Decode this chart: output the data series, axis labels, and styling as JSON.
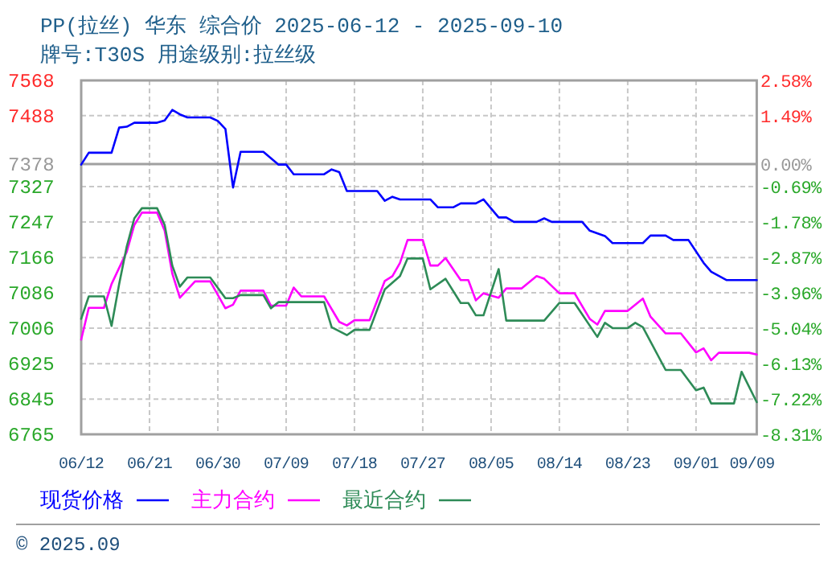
{
  "chart_data": {
    "type": "line",
    "title": "PP(拉丝) 华东 综合价 2025-06-12 - 2025-09-10",
    "subtitle": "牌号:T30S 用途级别:拉丝级",
    "annotations": [
      "© 2025.09"
    ],
    "xlim": [
      "2025-06-12",
      "2025-09-09"
    ],
    "xticks": [
      {
        "value": "2025-06-12",
        "label": "06/12"
      },
      {
        "value": "2025-06-21",
        "label": "06/21"
      },
      {
        "value": "2025-06-30",
        "label": "06/30"
      },
      {
        "value": "2025-07-09",
        "label": "07/09"
      },
      {
        "value": "2025-07-18",
        "label": "07/18"
      },
      {
        "value": "2025-07-27",
        "label": "07/27"
      },
      {
        "value": "2025-08-05",
        "label": "08/05"
      },
      {
        "value": "2025-08-14",
        "label": "08/14"
      },
      {
        "value": "2025-08-23",
        "label": "08/23"
      },
      {
        "value": "2025-09-01",
        "label": "09/01"
      },
      {
        "value": "2025-09-09",
        "label": "09/09"
      }
    ],
    "ylim": [
      6765,
      7568
    ],
    "yticks": [
      7568,
      7488,
      7378,
      7327,
      7247,
      7166,
      7086,
      7006,
      6925,
      6845,
      6765
    ],
    "y2lim": [
      -8.31,
      2.58
    ],
    "y2ticks": [
      {
        "value": 2.58,
        "label": "2.58%"
      },
      {
        "value": 1.49,
        "label": "1.49%"
      },
      {
        "value": 0,
        "label": "0.00%"
      },
      {
        "value": -0.69,
        "label": "-0.69%"
      },
      {
        "value": -1.78,
        "label": "-1.78%"
      },
      {
        "value": -2.87,
        "label": "-2.87%"
      },
      {
        "value": -3.96,
        "label": "-3.96%"
      },
      {
        "value": -5.04,
        "label": "-5.04%"
      },
      {
        "value": -6.13,
        "label": "-6.13%"
      },
      {
        "value": -7.22,
        "label": "-7.22%"
      },
      {
        "value": -8.31,
        "label": "-8.31%"
      }
    ],
    "grid": true,
    "legend": "bottom",
    "line_style": "solid",
    "ref_lines": [
      {
        "axis": "y",
        "value": 7378,
        "color": "#a0a0a0"
      }
    ],
    "series": [
      {
        "name": "现货价格",
        "color": "#0000ff",
        "x": [
          "2025-06-12",
          "2025-06-13",
          "2025-06-16",
          "2025-06-17",
          "2025-06-18",
          "2025-06-19",
          "2025-06-22",
          "2025-06-23",
          "2025-06-24",
          "2025-06-25",
          "2025-06-26",
          "2025-06-29",
          "2025-06-30",
          "2025-07-01",
          "2025-07-02",
          "2025-07-03",
          "2025-07-06",
          "2025-07-08",
          "2025-07-09",
          "2025-07-10",
          "2025-07-14",
          "2025-07-15",
          "2025-07-16",
          "2025-07-17",
          "2025-07-21",
          "2025-07-22",
          "2025-07-23",
          "2025-07-24",
          "2025-07-28",
          "2025-07-29",
          "2025-07-31",
          "2025-08-01",
          "2025-08-03",
          "2025-08-04",
          "2025-08-06",
          "2025-08-07",
          "2025-08-08",
          "2025-08-11",
          "2025-08-12",
          "2025-08-13",
          "2025-08-17",
          "2025-08-18",
          "2025-08-20",
          "2025-08-21",
          "2025-08-25",
          "2025-08-26",
          "2025-08-28",
          "2025-08-29",
          "2025-08-31",
          "2025-09-02",
          "2025-09-03",
          "2025-09-05",
          "2025-09-09"
        ],
        "values": [
          7377,
          7404,
          7404,
          7461,
          7463,
          7472,
          7472,
          7477,
          7501,
          7491,
          7484,
          7484,
          7476,
          7458,
          7325,
          7406,
          7406,
          7377,
          7377,
          7355,
          7355,
          7366,
          7360,
          7317,
          7317,
          7295,
          7304,
          7298,
          7298,
          7280,
          7280,
          7289,
          7289,
          7298,
          7257,
          7257,
          7247,
          7247,
          7255,
          7247,
          7247,
          7227,
          7215,
          7199,
          7199,
          7216,
          7216,
          7206,
          7206,
          7154,
          7134,
          7115,
          7115
        ]
      },
      {
        "name": "主力合约",
        "color": "#ff00ff",
        "x": [
          "2025-06-12",
          "2025-06-13",
          "2025-06-15",
          "2025-06-16",
          "2025-06-18",
          "2025-06-19",
          "2025-06-20",
          "2025-06-22",
          "2025-06-23",
          "2025-06-24",
          "2025-06-25",
          "2025-06-27",
          "2025-06-29",
          "2025-07-01",
          "2025-07-02",
          "2025-07-03",
          "2025-07-06",
          "2025-07-07",
          "2025-07-09",
          "2025-07-10",
          "2025-07-11",
          "2025-07-14",
          "2025-07-16",
          "2025-07-17",
          "2025-07-18",
          "2025-07-20",
          "2025-07-22",
          "2025-07-23",
          "2025-07-24",
          "2025-07-25",
          "2025-07-27",
          "2025-07-28",
          "2025-07-29",
          "2025-07-30",
          "2025-08-01",
          "2025-08-02",
          "2025-08-03",
          "2025-08-04",
          "2025-08-06",
          "2025-08-07",
          "2025-08-09",
          "2025-08-11",
          "2025-08-12",
          "2025-08-14",
          "2025-08-16",
          "2025-08-18",
          "2025-08-19",
          "2025-08-20",
          "2025-08-23",
          "2025-08-25",
          "2025-08-26",
          "2025-08-28",
          "2025-08-30",
          "2025-09-01",
          "2025-09-02",
          "2025-09-03",
          "2025-09-04",
          "2025-09-08",
          "2025-09-09"
        ],
        "values": [
          6980,
          7052,
          7052,
          7106,
          7179,
          7240,
          7268,
          7268,
          7227,
          7130,
          7075,
          7112,
          7112,
          7051,
          7059,
          7091,
          7091,
          7057,
          7057,
          7098,
          7078,
          7078,
          7020,
          7012,
          7024,
          7024,
          7113,
          7124,
          7154,
          7206,
          7206,
          7148,
          7148,
          7165,
          7115,
          7115,
          7069,
          7085,
          7075,
          7096,
          7096,
          7124,
          7118,
          7085,
          7085,
          7027,
          7014,
          7045,
          7045,
          7073,
          7032,
          6994,
          6994,
          6951,
          6960,
          6933,
          6950,
          6950,
          6946
        ]
      },
      {
        "name": "最近合约",
        "color": "#2e8b57",
        "x": [
          "2025-06-12",
          "2025-06-13",
          "2025-06-15",
          "2025-06-16",
          "2025-06-17",
          "2025-06-18",
          "2025-06-19",
          "2025-06-20",
          "2025-06-22",
          "2025-06-23",
          "2025-06-24",
          "2025-06-25",
          "2025-06-26",
          "2025-06-29",
          "2025-07-01",
          "2025-07-02",
          "2025-07-03",
          "2025-07-06",
          "2025-07-07",
          "2025-07-08",
          "2025-07-14",
          "2025-07-15",
          "2025-07-17",
          "2025-07-18",
          "2025-07-20",
          "2025-07-22",
          "2025-07-24",
          "2025-07-25",
          "2025-07-27",
          "2025-07-28",
          "2025-07-30",
          "2025-08-01",
          "2025-08-02",
          "2025-08-03",
          "2025-08-04",
          "2025-08-06",
          "2025-08-07",
          "2025-08-12",
          "2025-08-14",
          "2025-08-16",
          "2025-08-19",
          "2025-08-20",
          "2025-08-21",
          "2025-08-23",
          "2025-08-24",
          "2025-08-25",
          "2025-08-28",
          "2025-08-30",
          "2025-09-01",
          "2025-09-02",
          "2025-09-03",
          "2025-09-06",
          "2025-09-07",
          "2025-09-09"
        ],
        "values": [
          7027,
          7078,
          7078,
          7011,
          7106,
          7191,
          7255,
          7278,
          7278,
          7240,
          7148,
          7100,
          7121,
          7121,
          7074,
          7074,
          7081,
          7081,
          7051,
          7065,
          7065,
          7008,
          6990,
          7002,
          7002,
          7094,
          7124,
          7164,
          7164,
          7094,
          7118,
          7063,
          7063,
          7035,
          7035,
          7140,
          7023,
          7023,
          7063,
          7063,
          6986,
          7018,
          7006,
          7006,
          7018,
          7008,
          6911,
          6911,
          6865,
          6871,
          6835,
          6835,
          6907,
          6838
        ]
      }
    ]
  }
}
